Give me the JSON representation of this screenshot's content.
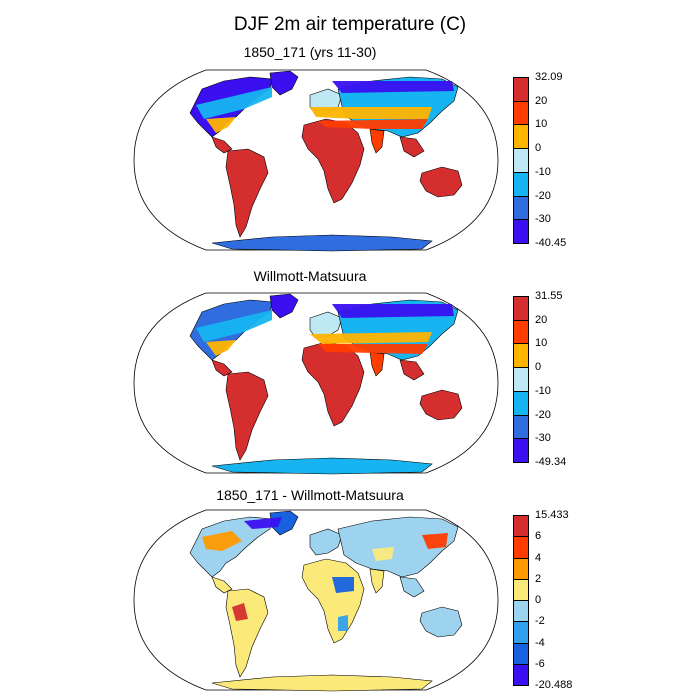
{
  "main_title": "DJF 2m air temperature (C)",
  "panels": [
    {
      "title": "1850_171 (yrs 11-30)",
      "palette": [
        "#d42e2e",
        "#ff3c00",
        "#ffb400",
        "#bfe8f5",
        "#16b4f0",
        "#2f6de0",
        "#3a10f0"
      ],
      "labels": [
        "32.09",
        "20",
        "10",
        "0",
        "-10",
        "-20",
        "-30",
        "-40.45"
      ]
    },
    {
      "title": "Willmott-Matsuura",
      "palette": [
        "#d42e2e",
        "#ff3c00",
        "#ffb400",
        "#bfe8f5",
        "#16b4f0",
        "#2f6de0",
        "#3a10f0"
      ],
      "labels": [
        "31.55",
        "20",
        "10",
        "0",
        "-10",
        "-20",
        "-30",
        "-49.34"
      ]
    },
    {
      "title": "1850_171 - Willmott-Matsuura",
      "palette": [
        "#d42e2e",
        "#ff3c00",
        "#ff9a00",
        "#fbea7a",
        "#9dd3ee",
        "#33a0ee",
        "#1862df",
        "#3a10f0"
      ],
      "labels": [
        "15.433",
        "6",
        "4",
        "2",
        "0",
        "-2",
        "-4",
        "-6",
        "-20.488"
      ]
    }
  ]
}
